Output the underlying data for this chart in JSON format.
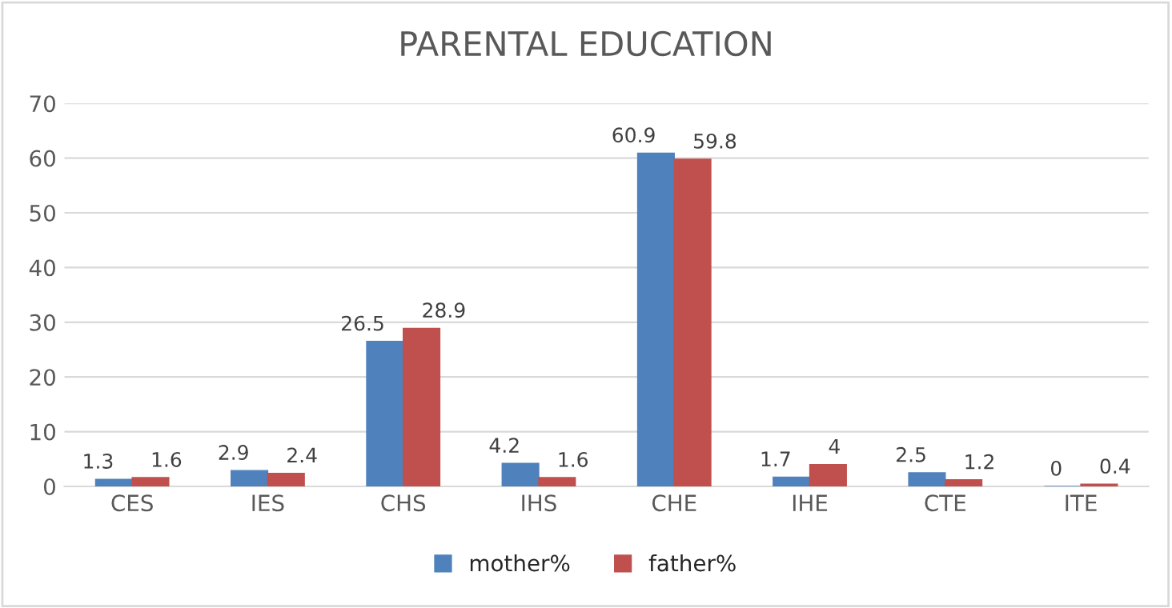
{
  "chart_data": {
    "type": "bar",
    "title": "PARENTAL EDUCATION",
    "categories": [
      "CES",
      "IES",
      "CHS",
      "IHS",
      "CHE",
      "IHE",
      "CTE",
      "ITE"
    ],
    "series": [
      {
        "name": "mother%",
        "color": "#4f81bd",
        "values": [
          1.3,
          2.9,
          26.5,
          4.2,
          60.9,
          1.7,
          2.5,
          0
        ]
      },
      {
        "name": "father%",
        "color": "#c0504d",
        "values": [
          1.6,
          2.4,
          28.9,
          1.6,
          59.8,
          4,
          1.2,
          0.4
        ]
      }
    ],
    "ylim": [
      0,
      70
    ],
    "yticks": [
      0,
      10,
      20,
      30,
      40,
      50,
      60,
      70
    ],
    "grid": "y",
    "legend": "bottom",
    "data_labels": true
  }
}
